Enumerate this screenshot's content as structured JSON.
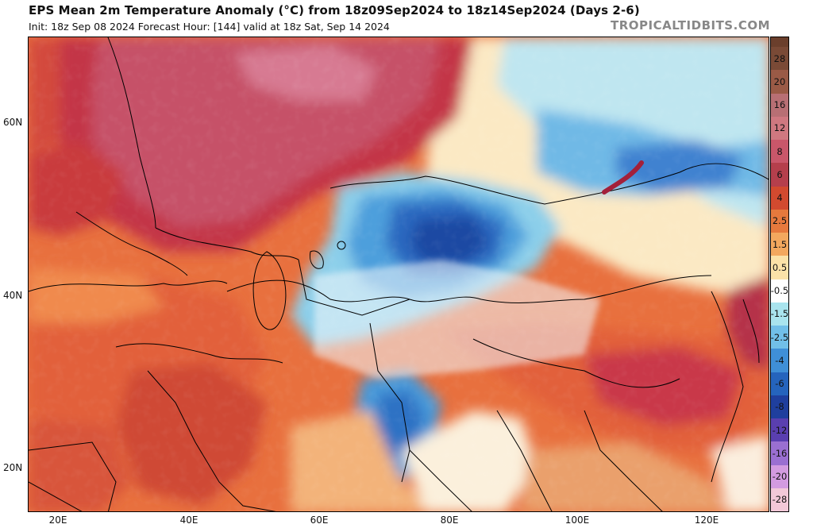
{
  "header": {
    "title": "EPS Mean 2m Temperature Anomaly (°C) from 18z09Sep2024 to 18z14Sep2024 (Days 2-6)",
    "subtitle": "Init: 18z Sep 08 2024   Forecast Hour: [144]   valid at 18z Sat, Sep 14 2024",
    "brand": "TROPICALTIDBITS.COM"
  },
  "axes": {
    "lat_labels": [
      "60N",
      "40N",
      "20N"
    ],
    "lon_labels": [
      "20E",
      "40E",
      "60E",
      "80E",
      "100E",
      "120E"
    ]
  },
  "colorbar": {
    "labels": [
      "28",
      "20",
      "16",
      "12",
      "8",
      "6",
      "4",
      "2.5",
      "1.5",
      "0.5",
      "-0.5",
      "-1.5",
      "-2.5",
      "-4",
      "-6",
      "-8",
      "-12",
      "-16",
      "-20",
      "-28"
    ],
    "colors": [
      "#7a4a36",
      "#9a5a46",
      "#b86f74",
      "#cf7880",
      "#c9576a",
      "#b53f4c",
      "#d24a2f",
      "#e6793d",
      "#f3a85e",
      "#fbe2a8",
      "#ffffff",
      "#a9e4ee",
      "#71bfe8",
      "#3f8fd7",
      "#2564bd",
      "#1f3f9e",
      "#5a3fb0",
      "#9a6fd1",
      "#d39be0",
      "#f2c8d8"
    ]
  },
  "palette": {
    "warm_extreme": "#b04a64",
    "warm_strong": "#c9384a",
    "warm": "#e2603a",
    "warm_mild": "#f4a45c",
    "neutral": "#fbf2e0",
    "cool_mild": "#a9e4ee",
    "cool": "#4e9fdc",
    "cool_strong": "#2054b0"
  }
}
